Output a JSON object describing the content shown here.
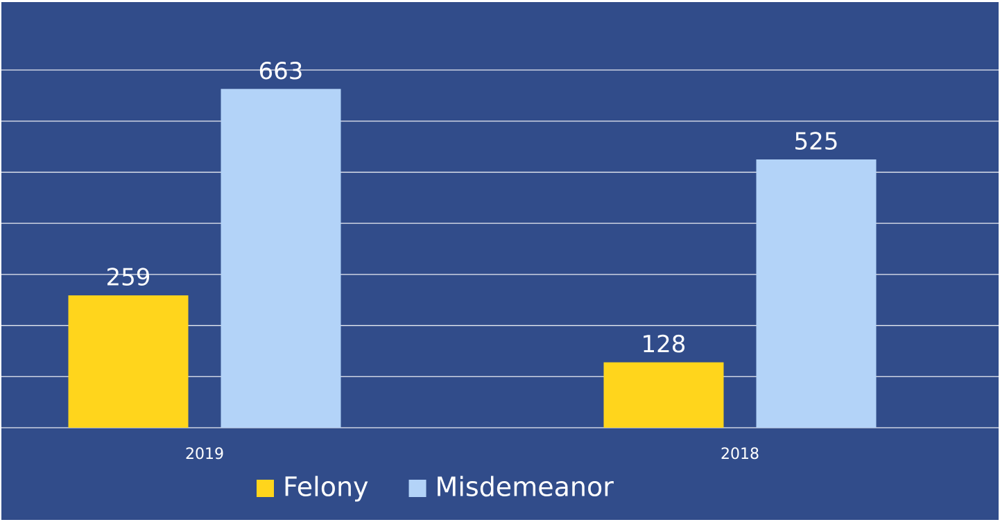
{
  "chart_data": {
    "type": "bar",
    "categories": [
      "2019",
      "2018"
    ],
    "series": [
      {
        "name": "Felony",
        "color": "#ffd51c",
        "values": [
          259,
          128
        ]
      },
      {
        "name": "Misdemeanor",
        "color": "#b3d3f8",
        "values": [
          663,
          525
        ]
      }
    ],
    "ylim": [
      0,
      700
    ],
    "yticks": [
      0,
      100,
      200,
      300,
      400,
      500,
      600,
      700
    ],
    "grid": true,
    "background": "#314c8a"
  }
}
